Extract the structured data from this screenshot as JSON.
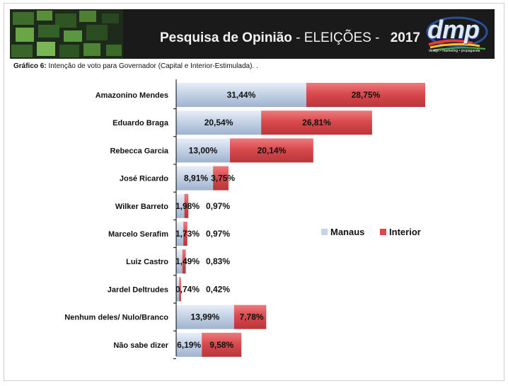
{
  "banner": {
    "title_main": "Pesquisa de Opinião",
    "title_sep": " - ELEIÇÕES - ",
    "year": "2017",
    "logo_text": "dmp",
    "logo_sub": "design • marketing • propaganda"
  },
  "subtitle": {
    "label": "Gráfico 6:",
    "text": " Intenção de voto para Governador (Capital e Interior-Estimulada). ."
  },
  "legend": {
    "manaus": "Manaus",
    "interior": "Interior"
  },
  "colors": {
    "manaus": "#c5d3e6",
    "interior": "#d94a4e",
    "axis": "#000000"
  },
  "chart_data": {
    "type": "bar",
    "orientation": "horizontal",
    "stacked": true,
    "title": "Intenção de voto para Governador (Capital e Interior-Estimulada)",
    "categories": [
      "Amazonino Mendes",
      "Eduardo Braga",
      "Rebecca Garcia",
      "José Ricardo",
      "Wilker Barreto",
      "Marcelo Serafim",
      "Luiz Castro",
      "Jardel Deltrudes",
      "Nenhum deles/ Nulo/Branco",
      "Não sabe dizer"
    ],
    "series": [
      {
        "name": "Manaus",
        "values": [
          31.44,
          20.54,
          13.0,
          8.91,
          1.98,
          1.73,
          1.49,
          0.74,
          13.99,
          6.19
        ],
        "labels": [
          "31,44%",
          "20,54%",
          "13,00%",
          "8,91%",
          "1,98%",
          "1,73%",
          "1,49%",
          "0,74%",
          "13,99%",
          "6,19%"
        ]
      },
      {
        "name": "Interior",
        "values": [
          28.75,
          26.81,
          20.14,
          3.75,
          0.97,
          0.97,
          0.83,
          0.42,
          7.78,
          9.58
        ],
        "labels": [
          "28,75%",
          "26,81%",
          "20,14%",
          "3,75%",
          "0,97%",
          "0,97%",
          "0,83%",
          "0,42%",
          "7,78%",
          "9,58%"
        ]
      }
    ],
    "xlim": [
      0,
      60
    ],
    "legend_position": "right"
  }
}
